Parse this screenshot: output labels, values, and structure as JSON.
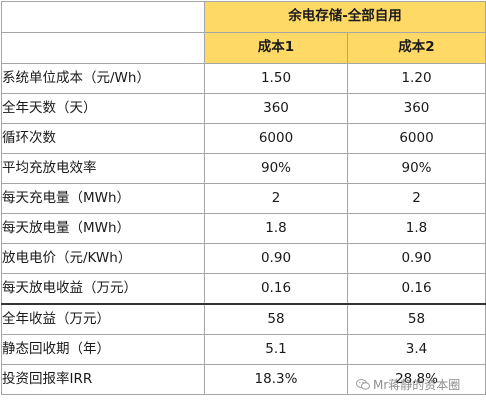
{
  "header": {
    "scenario": "余电存储-全部自用",
    "columns": [
      "成本1",
      "成本2"
    ]
  },
  "rows": [
    {
      "label": "系统单位成本（元/Wh）",
      "cost1": "1.50",
      "cost2": "1.20"
    },
    {
      "label": "全年天数（天）",
      "cost1": "360",
      "cost2": "360"
    },
    {
      "label": "循环次数",
      "cost1": "6000",
      "cost2": "6000"
    },
    {
      "label": "平均充放电效率",
      "cost1": "90%",
      "cost2": "90%"
    },
    {
      "label": "每天充电量（MWh）",
      "cost1": "2",
      "cost2": "2"
    },
    {
      "label": "每天放电量（MWh）",
      "cost1": "1.8",
      "cost2": "1.8"
    },
    {
      "label": "放电电价（元/KWh）",
      "cost1": "0.90",
      "cost2": "0.90"
    },
    {
      "label": "每天放电收益（万元）",
      "cost1": "0.16",
      "cost2": "0.16"
    },
    {
      "label": "全年收益（万元）",
      "cost1": "58",
      "cost2": "58"
    },
    {
      "label": "静态回收期（年）",
      "cost1": "5.1",
      "cost2": "3.4"
    },
    {
      "label": "投资回报率IRR",
      "cost1": "18.3%",
      "cost2": "28.8%"
    }
  ],
  "watermark": {
    "text": "Mr蒋静的资本圈",
    "icon": "wechat-icon"
  },
  "colors": {
    "header_fill": "#ffd966",
    "grid_line": "#a6a6a6",
    "separator_line": "#333333"
  }
}
